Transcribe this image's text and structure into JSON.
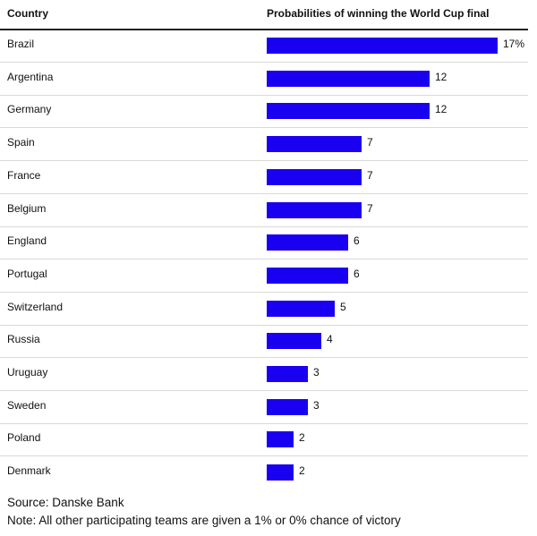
{
  "chart_data": {
    "type": "bar",
    "orientation": "horizontal",
    "column_headers": {
      "category": "Country",
      "value": "Probabilities of winning the World Cup final"
    },
    "categories": [
      "Brazil",
      "Argentina",
      "Germany",
      "Spain",
      "France",
      "Belgium",
      "England",
      "Portugal",
      "Switzerland",
      "Russia",
      "Uruguay",
      "Sweden",
      "Poland",
      "Denmark"
    ],
    "values": [
      17,
      12,
      12,
      7,
      7,
      7,
      6,
      6,
      5,
      4,
      3,
      3,
      2,
      2
    ],
    "value_labels": [
      "17%",
      "12",
      "12",
      "7",
      "7",
      "7",
      "6",
      "6",
      "5",
      "4",
      "3",
      "3",
      "2",
      "2"
    ],
    "xlim": [
      0,
      17
    ],
    "bar_color": "#1a00f0",
    "source": "Source: Danske Bank",
    "note": "Note: All other participating teams are given a 1% or 0% chance of victory"
  }
}
